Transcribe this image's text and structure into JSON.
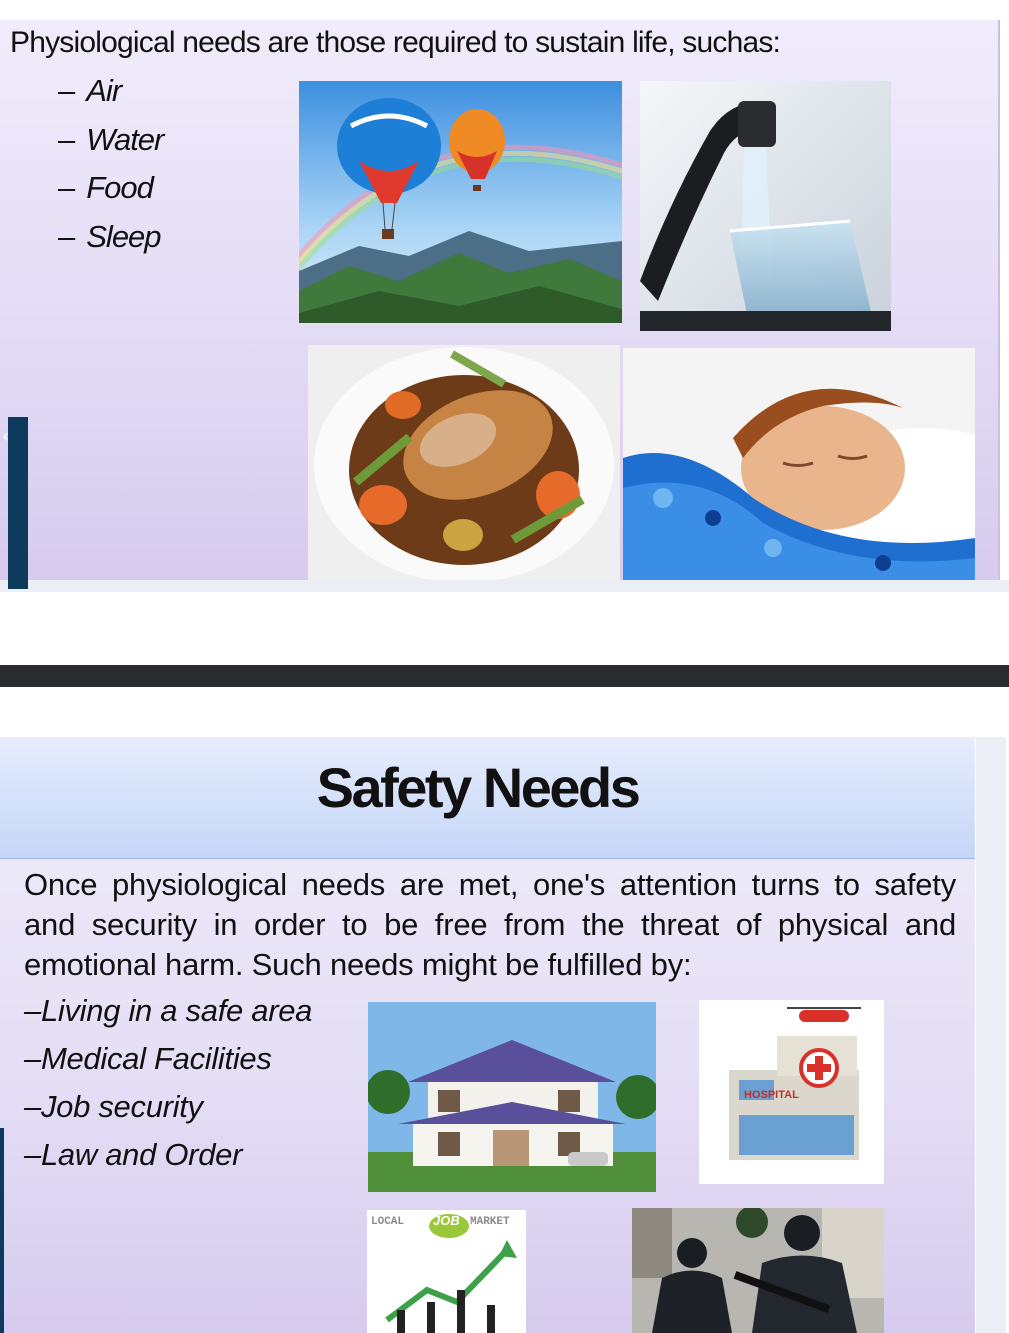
{
  "slide1": {
    "title": "Physiological needs are those required to sustain life, suchas:",
    "items": [
      {
        "dash": "–",
        "label": "Air"
      },
      {
        "dash": "–",
        "label": "Water"
      },
      {
        "dash": "–",
        "label": "Food"
      },
      {
        "dash": "–",
        "label": "Sleep"
      }
    ],
    "images": [
      "hot-air-balloons-photo",
      "water-tap-glass-photo",
      "food-plate-photo",
      "sleeping-boy-photo"
    ]
  },
  "side_tab": {
    "icon": "chevron-left-icon",
    "glyph": "‹"
  },
  "slide2": {
    "title": "Safety Needs",
    "body": "Once physiological needs are met, one's attention turns to safety and  security in order to be free from the threat of physical and emotional  harm. Such needs might be fulfilled by:",
    "items": [
      {
        "dash": "–",
        "label": "Living in a safe area"
      },
      {
        "dash": "–",
        "label": "Medical Facilities"
      },
      {
        "dash": "–",
        "label": "Job security"
      },
      {
        "dash": "–",
        "label": "Law and Order"
      }
    ],
    "hospital_sign": "HOSPITAL",
    "job_market_sign": {
      "left": "LOCAL",
      "middle": "JOB",
      "right": "MARKET"
    }
  },
  "colors": {
    "slide_bg": "#e3dcf5",
    "header_bg": "#c5d6f7",
    "divider": "#2b2c30",
    "side_tab": "#0e3a5c"
  }
}
